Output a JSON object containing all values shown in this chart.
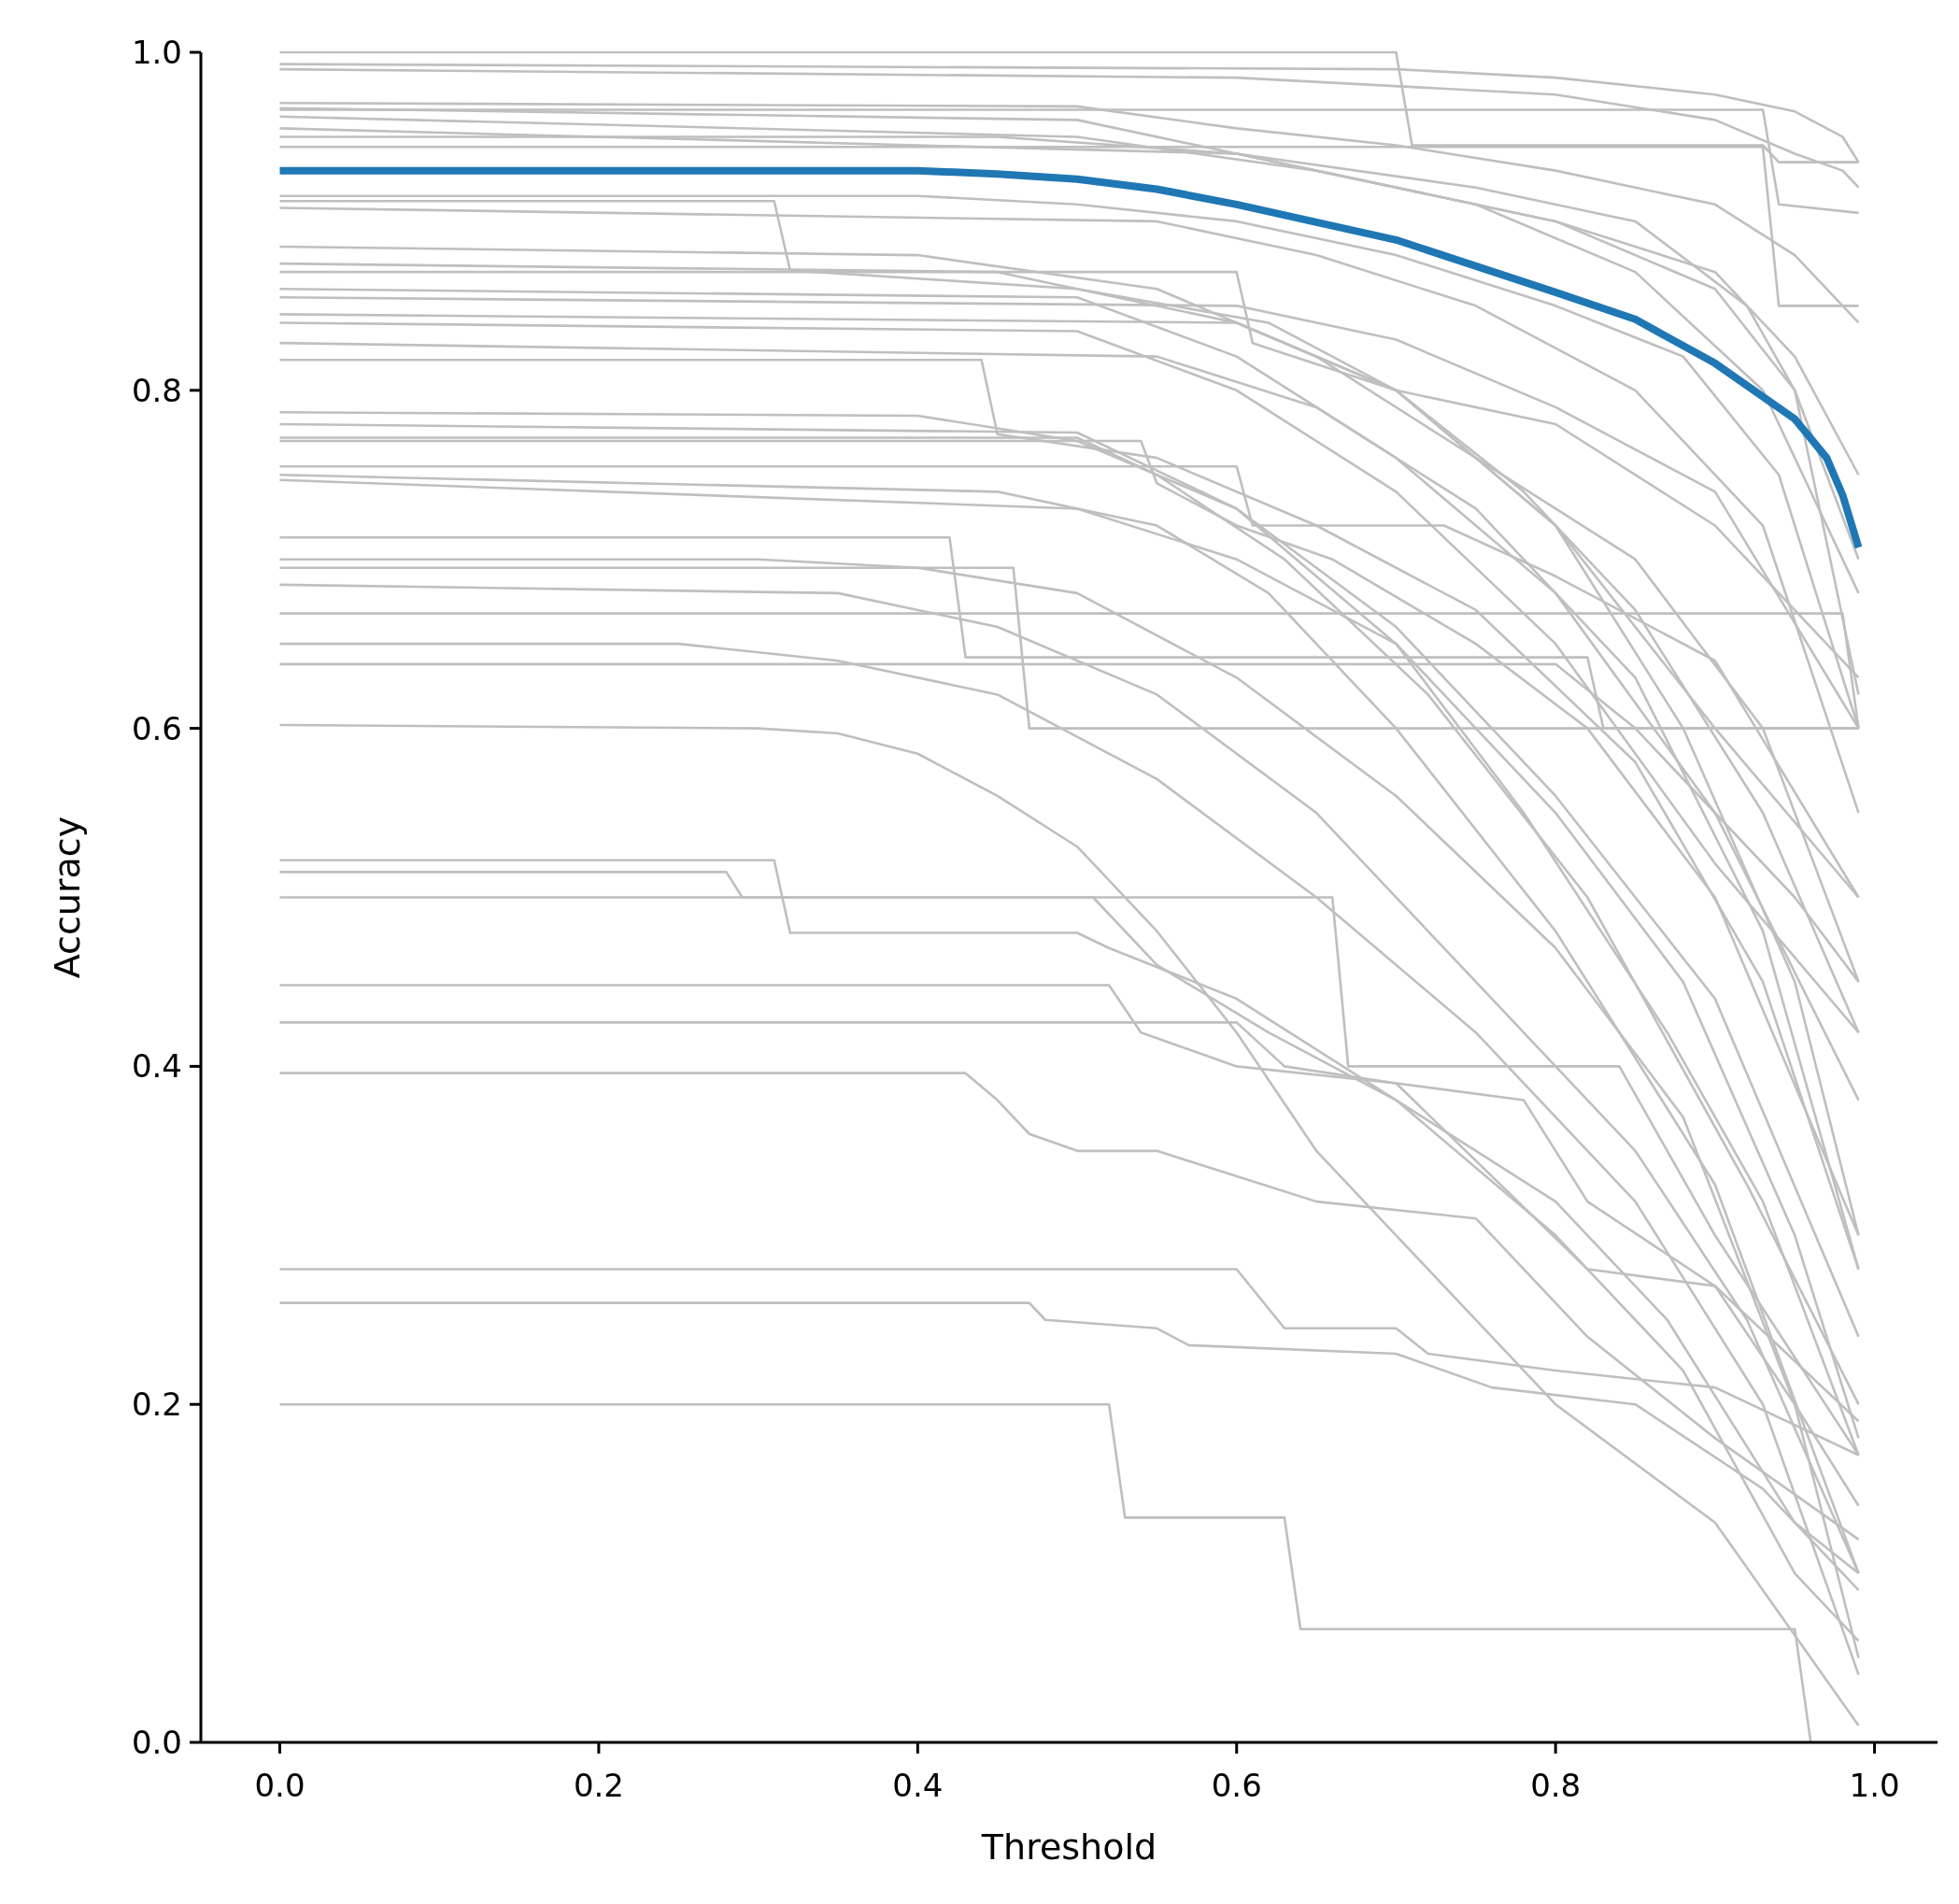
{
  "chart_data": {
    "type": "line",
    "xlabel": "Threshold",
    "ylabel": "Accuracy",
    "xlim": [
      -0.0495,
      1.0395
    ],
    "ylim": [
      0,
      1
    ],
    "xticks": [
      {
        "value": 0,
        "label": "0.0"
      },
      0.2,
      0.4,
      0.6,
      0.8,
      {
        "value": 1,
        "label": "1.0"
      }
    ],
    "yticks": [
      {
        "value": 0,
        "label": "0.0"
      },
      0.2,
      0.4,
      0.6,
      0.8,
      {
        "value": 1,
        "label": "1.0"
      }
    ],
    "grid": false,
    "marker": "none",
    "line_style": "solid",
    "series": [
      {
        "color": "#bfbfbf",
        "x": [
          0,
          0.7,
          0.71,
          0.93,
          0.94,
          0.99
        ],
        "values": [
          1.0,
          1.0,
          0.945,
          0.945,
          0.935,
          0.935
        ]
      },
      {
        "color": "#bfbfbf",
        "x": [
          0,
          0.7,
          0.8,
          0.9,
          0.95,
          0.98,
          0.99
        ],
        "values": [
          0.993,
          0.99,
          0.985,
          0.975,
          0.965,
          0.95,
          0.935
        ]
      },
      {
        "color": "#bfbfbf",
        "x": [
          0,
          0.6,
          0.8,
          0.9,
          0.95,
          0.98,
          0.99
        ],
        "values": [
          0.99,
          0.985,
          0.975,
          0.96,
          0.94,
          0.93,
          0.92
        ]
      },
      {
        "color": "#bfbfbf",
        "x": [
          0,
          0.5,
          0.6,
          0.7,
          0.8,
          0.9,
          0.95,
          0.99
        ],
        "values": [
          0.97,
          0.968,
          0.955,
          0.945,
          0.93,
          0.91,
          0.88,
          0.84
        ]
      },
      {
        "color": "#bfbfbf",
        "x": [
          0,
          0.5,
          0.6,
          0.7,
          0.8,
          0.9,
          0.95,
          0.99
        ],
        "values": [
          0.967,
          0.96,
          0.94,
          0.92,
          0.9,
          0.87,
          0.82,
          0.75
        ]
      },
      {
        "color": "#bfbfbf",
        "x": [
          0,
          0.5,
          0.65,
          0.8,
          0.9,
          0.95,
          0.99
        ],
        "values": [
          0.962,
          0.95,
          0.93,
          0.9,
          0.86,
          0.8,
          0.7
        ]
      },
      {
        "color": "#bfbfbf",
        "x": [
          0,
          0.93,
          0.94,
          0.99
        ],
        "values": [
          0.966,
          0.966,
          0.91,
          0.905
        ]
      },
      {
        "color": "#bfbfbf",
        "x": [
          0,
          0.6,
          0.75,
          0.85,
          0.93,
          0.99
        ],
        "values": [
          0.955,
          0.94,
          0.91,
          0.87,
          0.8,
          0.68
        ]
      },
      {
        "color": "#bfbfbf",
        "x": [
          0,
          0.45,
          0.6,
          0.75,
          0.85,
          0.92,
          0.95,
          0.99
        ],
        "values": [
          0.95,
          0.95,
          0.94,
          0.92,
          0.9,
          0.85,
          0.8,
          0.62
        ]
      },
      {
        "color": "#bfbfbf",
        "x": [
          0,
          0.93,
          0.94,
          0.99
        ],
        "values": [
          0.944,
          0.944,
          0.85,
          0.85
        ]
      },
      {
        "color": "#bfbfbf",
        "x": [
          0,
          0.4,
          0.5,
          0.6,
          0.7,
          0.8,
          0.88,
          0.94,
          0.99
        ],
        "values": [
          0.915,
          0.915,
          0.91,
          0.9,
          0.88,
          0.85,
          0.82,
          0.75,
          0.6
        ]
      },
      {
        "color": "#bfbfbf",
        "x": [
          0,
          0.31,
          0.32,
          0.5,
          0.62,
          0.7,
          0.8,
          0.9,
          0.99
        ],
        "values": [
          0.912,
          0.912,
          0.871,
          0.86,
          0.84,
          0.8,
          0.78,
          0.72,
          0.63
        ]
      },
      {
        "color": "#bfbfbf",
        "x": [
          0,
          0.55,
          0.65,
          0.75,
          0.85,
          0.93,
          0.99
        ],
        "values": [
          0.908,
          0.9,
          0.88,
          0.85,
          0.8,
          0.72,
          0.55
        ]
      },
      {
        "color": "#bfbfbf",
        "x": [
          0,
          0.4,
          0.55,
          0.65,
          0.75,
          0.85,
          0.93,
          0.99
        ],
        "values": [
          0.885,
          0.88,
          0.86,
          0.82,
          0.76,
          0.7,
          0.6,
          0.45
        ]
      },
      {
        "color": "#bfbfbf",
        "x": [
          0,
          0.45,
          0.6,
          0.7,
          0.78,
          0.85,
          0.93,
          0.99
        ],
        "values": [
          0.875,
          0.87,
          0.84,
          0.8,
          0.74,
          0.67,
          0.55,
          0.42
        ]
      },
      {
        "color": "#bfbfbf",
        "x": [
          0,
          0.6,
          0.61,
          0.7,
          0.8,
          0.9,
          0.99
        ],
        "values": [
          0.87,
          0.87,
          0.828,
          0.8,
          0.72,
          0.6,
          0.5
        ]
      },
      {
        "color": "#bfbfbf",
        "x": [
          0,
          0.5,
          0.6,
          0.7,
          0.8,
          0.9,
          0.99
        ],
        "values": [
          0.86,
          0.855,
          0.82,
          0.76,
          0.68,
          0.55,
          0.38
        ]
      },
      {
        "color": "#bfbfbf",
        "x": [
          0,
          0.6,
          0.7,
          0.8,
          0.9,
          0.99
        ],
        "values": [
          0.855,
          0.85,
          0.83,
          0.79,
          0.74,
          0.6
        ]
      },
      {
        "color": "#bfbfbf",
        "x": [
          0,
          0.6,
          0.7,
          0.8,
          0.88,
          0.95,
          0.99
        ],
        "values": [
          0.845,
          0.84,
          0.8,
          0.72,
          0.6,
          0.45,
          0.3
        ]
      },
      {
        "color": "#bfbfbf",
        "x": [
          0,
          0.5,
          0.6,
          0.7,
          0.8,
          0.9,
          0.99
        ],
        "values": [
          0.84,
          0.835,
          0.8,
          0.74,
          0.65,
          0.52,
          0.42
        ]
      },
      {
        "color": "#bfbfbf",
        "x": [
          0,
          0.55,
          0.65,
          0.75,
          0.85,
          0.93,
          0.99
        ],
        "values": [
          0.828,
          0.82,
          0.79,
          0.73,
          0.63,
          0.48,
          0.28
        ]
      },
      {
        "color": "#bfbfbf",
        "x": [
          0,
          0.44,
          0.45,
          0.55,
          0.65,
          0.75,
          0.85,
          0.93,
          0.99
        ],
        "values": [
          0.818,
          0.818,
          0.774,
          0.76,
          0.72,
          0.67,
          0.58,
          0.45,
          0.28
        ]
      },
      {
        "color": "#bfbfbf",
        "x": [
          0,
          0.4,
          0.5,
          0.6,
          0.7,
          0.8,
          0.9,
          0.99
        ],
        "values": [
          0.787,
          0.785,
          0.77,
          0.73,
          0.66,
          0.56,
          0.44,
          0.24
        ]
      },
      {
        "color": "#bfbfbf",
        "x": [
          0,
          0.5,
          0.6,
          0.7,
          0.78,
          0.87,
          0.93,
          0.99
        ],
        "values": [
          0.78,
          0.775,
          0.73,
          0.65,
          0.55,
          0.42,
          0.32,
          0.17
        ]
      },
      {
        "color": "#bfbfbf",
        "x": [
          0,
          0.5,
          0.55,
          0.63,
          0.72,
          0.82,
          0.92,
          0.99
        ],
        "values": [
          0.772,
          0.772,
          0.75,
          0.7,
          0.62,
          0.5,
          0.33,
          0.2
        ]
      },
      {
        "color": "#bfbfbf",
        "x": [
          0,
          0.54,
          0.55,
          0.6,
          0.66,
          0.75,
          0.82,
          0.9,
          0.99
        ],
        "values": [
          0.77,
          0.77,
          0.745,
          0.72,
          0.7,
          0.65,
          0.6,
          0.5,
          0.3
        ]
      },
      {
        "color": "#bfbfbf",
        "x": [
          0,
          0.6,
          0.61,
          0.73,
          0.8,
          0.9,
          0.99
        ],
        "values": [
          0.755,
          0.755,
          0.72,
          0.72,
          0.69,
          0.64,
          0.5
        ]
      },
      {
        "color": "#bfbfbf",
        "x": [
          0,
          0.45,
          0.55,
          0.62,
          0.7,
          0.8,
          0.9,
          0.99
        ],
        "values": [
          0.75,
          0.74,
          0.72,
          0.68,
          0.6,
          0.48,
          0.33,
          0.1
        ]
      },
      {
        "color": "#bfbfbf",
        "x": [
          0,
          0.5,
          0.6,
          0.7,
          0.8,
          0.88,
          0.95,
          0.99
        ],
        "values": [
          0.747,
          0.73,
          0.7,
          0.65,
          0.55,
          0.45,
          0.3,
          0.18
        ]
      },
      {
        "color": "#bfbfbf",
        "x": [
          0,
          0.42,
          0.43,
          0.82,
          0.83,
          0.99
        ],
        "values": [
          0.713,
          0.713,
          0.642,
          0.642,
          0.6,
          0.6
        ]
      },
      {
        "color": "#bfbfbf",
        "x": [
          0,
          0.3,
          0.4,
          0.5,
          0.6,
          0.7,
          0.8,
          0.88,
          0.95,
          0.99
        ],
        "values": [
          0.7,
          0.7,
          0.695,
          0.68,
          0.63,
          0.56,
          0.47,
          0.37,
          0.2,
          0.05
        ]
      },
      {
        "color": "#bfbfbf",
        "x": [
          0,
          0.46,
          0.47,
          0.99
        ],
        "values": [
          0.695,
          0.695,
          0.6,
          0.6
        ]
      },
      {
        "color": "#bfbfbf",
        "x": [
          0,
          0.35,
          0.45,
          0.55,
          0.65,
          0.75,
          0.85,
          0.92,
          0.99
        ],
        "values": [
          0.685,
          0.68,
          0.66,
          0.62,
          0.55,
          0.45,
          0.35,
          0.25,
          0.1
        ]
      },
      {
        "color": "#bfbfbf",
        "x": [
          0,
          0.98,
          0.99
        ],
        "values": [
          0.668,
          0.668,
          0.6
        ]
      },
      {
        "color": "#bfbfbf",
        "x": [
          0,
          0.25,
          0.35,
          0.45,
          0.55,
          0.65,
          0.75,
          0.85,
          0.93,
          0.99
        ],
        "values": [
          0.65,
          0.65,
          0.64,
          0.62,
          0.57,
          0.5,
          0.42,
          0.32,
          0.2,
          0.04
        ]
      },
      {
        "color": "#bfbfbf",
        "x": [
          0,
          0.8,
          0.85,
          0.95,
          0.99
        ],
        "values": [
          0.638,
          0.638,
          0.6,
          0.5,
          0.45
        ]
      },
      {
        "color": "#bfbfbf",
        "x": [
          0,
          0.3,
          0.35,
          0.4,
          0.45,
          0.5,
          0.55,
          0.6,
          0.65,
          0.7,
          0.8,
          0.9,
          0.96,
          0.99
        ],
        "values": [
          0.602,
          0.6,
          0.597,
          0.585,
          0.56,
          0.53,
          0.48,
          0.42,
          0.35,
          0.3,
          0.2,
          0.13,
          0.05,
          0.01
        ]
      },
      {
        "color": "#bfbfbf",
        "x": [
          0,
          0.31,
          0.32,
          0.5,
          0.52,
          0.6,
          0.7,
          0.8,
          0.88,
          0.95,
          0.99
        ],
        "values": [
          0.522,
          0.522,
          0.479,
          0.479,
          0.47,
          0.44,
          0.38,
          0.3,
          0.22,
          0.1,
          0.06
        ]
      },
      {
        "color": "#bfbfbf",
        "x": [
          0,
          0.28,
          0.29,
          0.66,
          0.67,
          0.84,
          0.9,
          0.99
        ],
        "values": [
          0.515,
          0.515,
          0.5,
          0.5,
          0.4,
          0.4,
          0.3,
          0.17
        ]
      },
      {
        "color": "#bfbfbf",
        "x": [
          0,
          0.51,
          0.55,
          0.62,
          0.7,
          0.8,
          0.87,
          0.95,
          0.99
        ],
        "values": [
          0.5,
          0.5,
          0.46,
          0.42,
          0.38,
          0.32,
          0.25,
          0.13,
          0.1
        ]
      },
      {
        "color": "#bfbfbf",
        "x": [
          0,
          0.52,
          0.54,
          0.6,
          0.7,
          0.78,
          0.82,
          0.9,
          0.95,
          0.99
        ],
        "values": [
          0.448,
          0.448,
          0.42,
          0.4,
          0.39,
          0.38,
          0.32,
          0.27,
          0.2,
          0.14
        ]
      },
      {
        "color": "#bfbfbf",
        "x": [
          0,
          0.6,
          0.63,
          0.7,
          0.82,
          0.9,
          0.99
        ],
        "values": [
          0.426,
          0.426,
          0.4,
          0.39,
          0.28,
          0.27,
          0.19
        ]
      },
      {
        "color": "#bfbfbf",
        "x": [
          0,
          0.43,
          0.45,
          0.47,
          0.5,
          0.55,
          0.6,
          0.65,
          0.75,
          0.82,
          0.9,
          0.99
        ],
        "values": [
          0.396,
          0.396,
          0.38,
          0.36,
          0.35,
          0.35,
          0.335,
          0.32,
          0.31,
          0.24,
          0.18,
          0.12
        ]
      },
      {
        "color": "#bfbfbf",
        "x": [
          0,
          0.6,
          0.63,
          0.7,
          0.72,
          0.8,
          0.9,
          0.99
        ],
        "values": [
          0.28,
          0.28,
          0.245,
          0.245,
          0.23,
          0.22,
          0.21,
          0.17
        ]
      },
      {
        "color": "#bfbfbf",
        "x": [
          0,
          0.47,
          0.48,
          0.55,
          0.57,
          0.7,
          0.76,
          0.85,
          0.93,
          0.99
        ],
        "values": [
          0.26,
          0.26,
          0.25,
          0.245,
          0.235,
          0.23,
          0.21,
          0.2,
          0.15,
          0.09
        ]
      },
      {
        "color": "#bfbfbf",
        "x": [
          0,
          0.52,
          0.53,
          0.63,
          0.64,
          0.95,
          0.96
        ],
        "values": [
          0.2,
          0.2,
          0.133,
          0.133,
          0.067,
          0.067,
          0.0
        ]
      },
      {
        "color": "#1f77b4",
        "x": [
          0,
          0.4,
          0.45,
          0.5,
          0.55,
          0.6,
          0.7,
          0.8,
          0.85,
          0.9,
          0.95,
          0.97,
          0.98,
          0.99
        ],
        "values": [
          0.93,
          0.93,
          0.928,
          0.925,
          0.919,
          0.91,
          0.889,
          0.858,
          0.842,
          0.816,
          0.783,
          0.76,
          0.738,
          0.707
        ]
      }
    ]
  }
}
